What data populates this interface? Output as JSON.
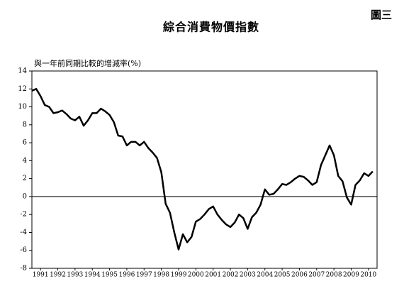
{
  "figure_label": "圖三",
  "chart_data": {
    "type": "line",
    "title": "綜合消費物價指數",
    "y_label": "與一年前同期比較的增減率(%)",
    "x": [
      1991,
      1991.25,
      1991.5,
      1991.75,
      1992,
      1992.25,
      1992.5,
      1992.75,
      1993,
      1993.25,
      1993.5,
      1993.75,
      1994,
      1994.25,
      1994.5,
      1994.75,
      1995,
      1995.25,
      1995.5,
      1995.75,
      1996,
      1996.25,
      1996.5,
      1996.75,
      1997,
      1997.25,
      1997.5,
      1997.75,
      1998,
      1998.25,
      1998.5,
      1998.75,
      1999,
      1999.25,
      1999.5,
      1999.75,
      2000,
      2000.25,
      2000.5,
      2000.75,
      2001,
      2001.25,
      2001.5,
      2001.75,
      2002,
      2002.25,
      2002.5,
      2002.75,
      2003,
      2003.25,
      2003.5,
      2003.75,
      2004,
      2004.25,
      2004.5,
      2004.75,
      2005,
      2005.25,
      2005.5,
      2005.75,
      2006,
      2006.25,
      2006.5,
      2006.75,
      2007,
      2007.25,
      2007.5,
      2007.75,
      2008,
      2008.25,
      2008.5,
      2008.75,
      2009,
      2009.25,
      2009.5,
      2009.75,
      2010,
      2010.25,
      2010.5,
      2010.75
    ],
    "series": [
      {
        "color": "#000000",
        "values": [
          11.8,
          12.0,
          11.2,
          10.2,
          10.0,
          9.3,
          9.4,
          9.6,
          9.2,
          8.7,
          8.5,
          8.9,
          7.9,
          8.5,
          9.3,
          9.3,
          9.8,
          9.5,
          9.1,
          8.3,
          6.8,
          6.7,
          5.7,
          6.1,
          6.1,
          5.7,
          6.1,
          5.4,
          4.9,
          4.3,
          2.7,
          -0.8,
          -1.8,
          -4.0,
          -5.9,
          -4.2,
          -5.1,
          -4.5,
          -2.8,
          -2.5,
          -2.0,
          -1.4,
          -1.1,
          -2.0,
          -2.6,
          -3.1,
          -3.4,
          -2.9,
          -2.0,
          -2.4,
          -3.6,
          -2.3,
          -1.8,
          -0.9,
          0.8,
          0.2,
          0.3,
          0.8,
          1.4,
          1.3,
          1.6,
          2.0,
          2.3,
          2.2,
          1.8,
          1.3,
          1.6,
          3.5,
          4.6,
          5.7,
          4.6,
          2.3,
          1.7,
          -0.1,
          -0.9,
          1.3,
          1.8,
          2.6,
          2.3,
          2.8
        ]
      }
    ],
    "xlim": [
      1991,
      2011
    ],
    "xticks": [
      {
        "value": 1991.5,
        "label": "1991"
      },
      {
        "value": 1992.5,
        "label": "1992"
      },
      {
        "value": 1993.5,
        "label": "1993"
      },
      {
        "value": 1994.5,
        "label": "1994"
      },
      {
        "value": 1995.5,
        "label": "1995"
      },
      {
        "value": 1996.5,
        "label": "1996"
      },
      {
        "value": 1997.5,
        "label": "1997"
      },
      {
        "value": 1998.5,
        "label": "1998"
      },
      {
        "value": 1999.5,
        "label": "1999"
      },
      {
        "value": 2000.5,
        "label": "2000"
      },
      {
        "value": 2001.5,
        "label": "2001"
      },
      {
        "value": 2002.5,
        "label": "2002"
      },
      {
        "value": 2003.5,
        "label": "2003"
      },
      {
        "value": 2004.5,
        "label": "2004"
      },
      {
        "value": 2005.5,
        "label": "2005"
      },
      {
        "value": 2006.5,
        "label": "2006"
      },
      {
        "value": 2007.5,
        "label": "2007"
      },
      {
        "value": 2008.5,
        "label": "2008"
      },
      {
        "value": 2009.5,
        "label": "2009"
      },
      {
        "value": 2010.5,
        "label": "2010"
      }
    ],
    "ylim": [
      -8,
      14
    ],
    "yticks": [
      -8,
      -6,
      -4,
      -2,
      0,
      2,
      4,
      6,
      8,
      10,
      12,
      14
    ],
    "grid": false
  }
}
